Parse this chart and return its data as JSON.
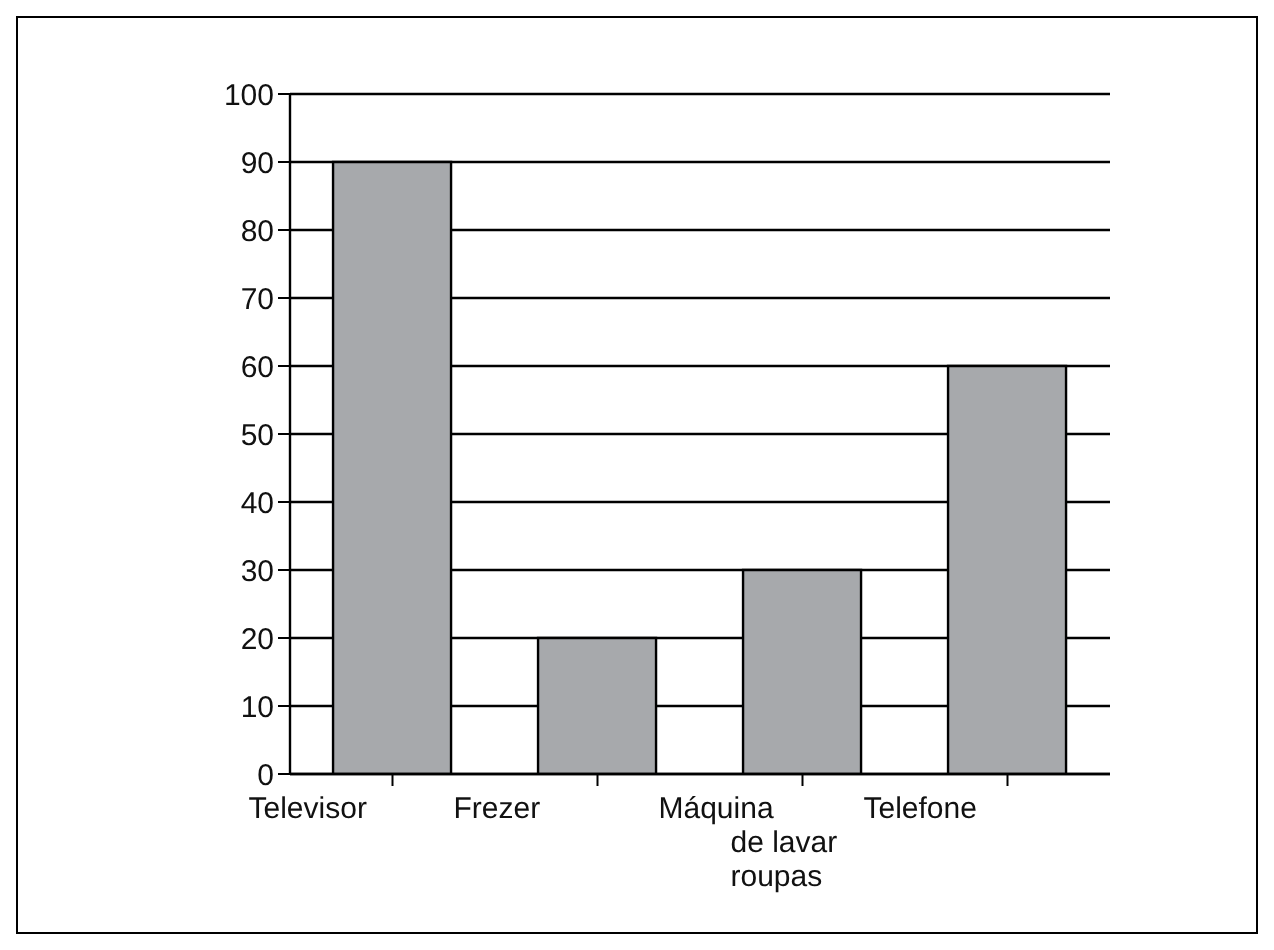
{
  "chart_data": {
    "type": "bar",
    "categories": [
      "Televisor",
      "Frezer",
      "Máquina de lavar roupas",
      "Telefone"
    ],
    "values": [
      90,
      20,
      30,
      60
    ],
    "color": "#a7a9ac",
    "ylim": [
      0,
      100
    ],
    "yticks": [
      0,
      10,
      20,
      30,
      40,
      50,
      60,
      70,
      80,
      90,
      100
    ],
    "grid": "y"
  }
}
